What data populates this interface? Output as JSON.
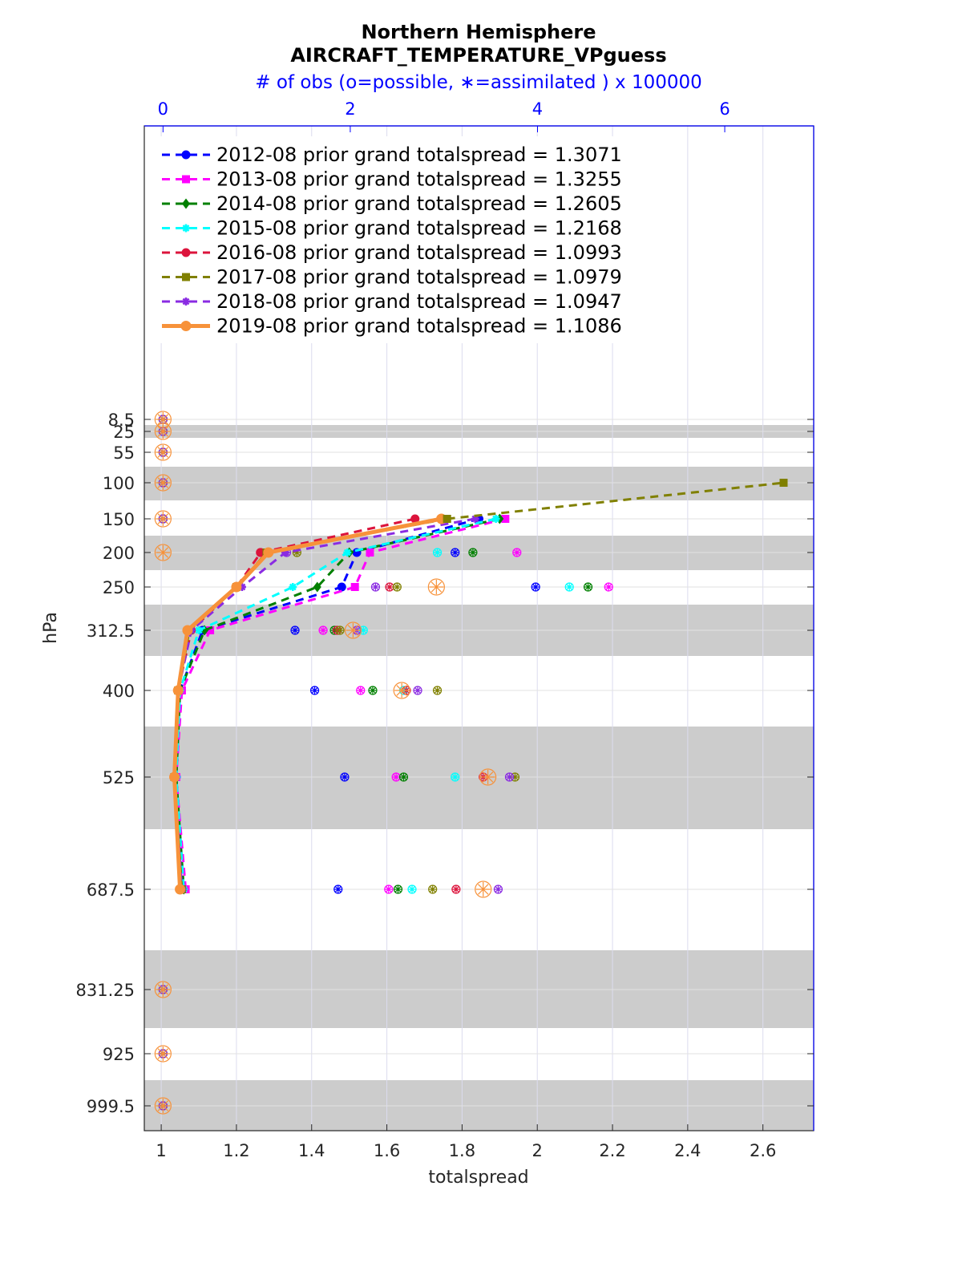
{
  "chart_data": {
    "type": "line",
    "title": "Northern Hemisphere",
    "subtitle": "AIRCRAFT_TEMPERATURE_VPguess",
    "top_axis_label": "# of obs (o=possible, ∗=assimilated ) x 100000",
    "xlabel": "totalspread",
    "ylabel": "hPa",
    "xlim": [
      0.955,
      2.735
    ],
    "x_ticks": [
      "1",
      "1.2",
      "1.4",
      "1.6",
      "1.8",
      "2",
      "2.2",
      "2.4",
      "2.6"
    ],
    "top_xlim": [
      -0.2,
      6.95
    ],
    "top_ticks": [
      "0",
      "2",
      "4",
      "6"
    ],
    "y_scale": "log",
    "y_reversed": true,
    "y_ticks": [
      "8.5",
      "25",
      "55",
      "100",
      "150",
      "200",
      "250",
      "312.5",
      "400",
      "525",
      "687.5",
      "831.25",
      "925",
      "999.5"
    ],
    "y_levels": [
      8.5,
      25,
      55,
      100,
      150,
      200,
      250,
      312.5,
      400,
      525,
      687.5,
      831.25,
      925,
      999.5
    ],
    "gray_bands_hpa": [
      [
        20,
        30
      ],
      [
        75,
        125
      ],
      [
        175,
        225
      ],
      [
        275,
        350
      ],
      [
        450,
        600
      ],
      [
        750,
        900
      ],
      [
        1000,
        1050
      ]
    ],
    "grid": true,
    "legend_placement": "top-left",
    "series": [
      {
        "name": "2012-08 prior grand totalspread = 1.3071",
        "color": "#0000ff",
        "marker": "circle",
        "dash": "10,7",
        "width": 3,
        "x": [
          1.845,
          1.52,
          1.48,
          1.11,
          1.05,
          1.04,
          1.055
        ],
        "y": [
          150,
          200,
          250,
          312.5,
          400,
          525,
          687.5
        ],
        "possible": [
          0,
          0,
          0,
          0,
          0,
          0,
          0,
          0,
          0,
          0,
          0,
          0,
          0,
          0
        ],
        "assimilated": [
          0,
          0,
          0,
          0,
          0,
          0,
          0,
          0,
          0,
          0,
          0,
          0,
          0,
          0
        ],
        "obs_pressure": [
          8.5,
          25,
          55,
          100,
          150,
          200,
          250,
          312.5,
          400,
          525,
          687.5,
          831.25,
          925,
          999.5
        ],
        "obs_possible": [
          0,
          0,
          0,
          0,
          0,
          3.12,
          3.98,
          1.41,
          1.62,
          1.94,
          1.87,
          0,
          0,
          0
        ]
      },
      {
        "name": "2013-08 prior grand totalspread = 1.3255",
        "color": "#ff00ff",
        "marker": "square",
        "dash": "10,7",
        "width": 3,
        "x": [
          1.915,
          1.555,
          1.515,
          1.13,
          1.055,
          1.04,
          1.065
        ],
        "y": [
          150,
          200,
          250,
          312.5,
          400,
          525,
          687.5
        ],
        "obs_pressure": [
          8.5,
          25,
          55,
          100,
          150,
          200,
          250,
          312.5,
          400,
          525,
          687.5,
          831.25,
          925,
          999.5
        ],
        "obs_possible": [
          0,
          0,
          0,
          0,
          0,
          3.78,
          4.76,
          1.71,
          2.11,
          2.49,
          2.41,
          0,
          0,
          0
        ]
      },
      {
        "name": "2014-08 prior grand totalspread = 1.2605",
        "color": "#008000",
        "marker": "diamond",
        "dash": "10,7",
        "width": 3,
        "x": [
          1.9,
          1.5,
          1.415,
          1.115,
          1.05,
          1.04,
          1.06
        ],
        "y": [
          150,
          200,
          250,
          312.5,
          400,
          525,
          687.5
        ],
        "obs_pressure": [
          8.5,
          25,
          55,
          100,
          150,
          200,
          250,
          312.5,
          400,
          525,
          687.5,
          831.25,
          925,
          999.5
        ],
        "obs_possible": [
          0,
          0,
          0,
          0,
          0,
          3.31,
          4.54,
          1.83,
          2.24,
          2.57,
          2.51,
          0,
          0,
          0
        ]
      },
      {
        "name": "2015-08 prior grand totalspread = 1.2168",
        "color": "#00ffff",
        "marker": "star",
        "dash": "10,7",
        "width": 3,
        "x": [
          1.89,
          1.495,
          1.35,
          1.1,
          1.05,
          1.04,
          1.06
        ],
        "y": [
          150,
          200,
          250,
          312.5,
          400,
          525,
          687.5
        ],
        "obs_pressure": [
          8.5,
          25,
          55,
          100,
          150,
          200,
          250,
          312.5,
          400,
          525,
          687.5,
          831.25,
          925,
          999.5
        ],
        "obs_possible": [
          0,
          0,
          0,
          0,
          0,
          2.93,
          4.34,
          2.14,
          2.57,
          3.12,
          2.66,
          0,
          0,
          0
        ]
      },
      {
        "name": "2016-08 prior grand totalspread = 1.0993",
        "color": "#dc143c",
        "marker": "hexagram",
        "dash": "10,7",
        "width": 3,
        "x": [
          1.675,
          1.265,
          1.2,
          1.08,
          1.045,
          1.035,
          1.055
        ],
        "y": [
          150,
          200,
          250,
          312.5,
          400,
          525,
          687.5
        ],
        "obs_pressure": [
          8.5,
          25,
          55,
          100,
          150,
          200,
          250,
          312.5,
          400,
          525,
          687.5,
          831.25,
          925,
          999.5
        ],
        "obs_possible": [
          0,
          0,
          0,
          0,
          0,
          1.04,
          2.42,
          1.86,
          2.6,
          3.42,
          3.13,
          0,
          0,
          0
        ]
      },
      {
        "name": "2017-08 prior grand totalspread = 1.0979",
        "color": "#808000",
        "marker": "square",
        "dash": "10,7",
        "width": 3,
        "x": [
          1.76,
          1.28,
          1.2,
          1.075,
          1.045,
          1.035,
          1.055
        ],
        "y": [
          150,
          200,
          250,
          312.5,
          400,
          525,
          687.5
        ],
        "obs_pressure": [
          8.5,
          25,
          55,
          100,
          150,
          200,
          250,
          312.5,
          400,
          525,
          687.5,
          831.25,
          925,
          999.5
        ],
        "obs_possible": [
          0,
          0,
          0,
          0,
          0,
          1.43,
          2.5,
          1.89,
          2.93,
          3.76,
          2.88,
          0,
          0,
          0
        ]
      },
      {
        "name": "2018-08 prior grand totalspread = 1.0947",
        "color": "#8a2be2",
        "marker": "asterisk",
        "dash": "10,7",
        "width": 3,
        "x": [
          1.835,
          1.33,
          1.215,
          1.08,
          1.045,
          1.035,
          1.055
        ],
        "y": [
          150,
          200,
          250,
          312.5,
          400,
          525,
          687.5
        ],
        "obs_pressure": [
          8.5,
          25,
          55,
          100,
          150,
          200,
          250,
          312.5,
          400,
          525,
          687.5,
          831.25,
          925,
          999.5
        ],
        "obs_possible": [
          0,
          0,
          0,
          0,
          0,
          1.32,
          2.27,
          2.07,
          2.72,
          3.7,
          3.58,
          0,
          0,
          0
        ]
      },
      {
        "name": "2019-08 prior grand totalspread = 1.1086",
        "color": "#f7923a",
        "marker": "circle",
        "dash": "",
        "width": 5,
        "x": [
          1.745,
          1.285,
          1.2,
          1.07,
          1.045,
          1.035,
          1.05
        ],
        "y": [
          150,
          200,
          250,
          312.5,
          400,
          525,
          687.5
        ],
        "obs_pressure": [
          8.5,
          25,
          55,
          100,
          150,
          200,
          250,
          312.5,
          400,
          525,
          687.5,
          831.25,
          925,
          999.5
        ],
        "obs_possible": [
          0,
          0,
          0,
          0,
          0,
          0,
          2.92,
          2.03,
          2.55,
          3.47,
          3.42,
          0,
          0,
          0
        ]
      },
      {
        "name": "",
        "color": "#808000",
        "marker": "square",
        "dash": "10,7",
        "width": 3,
        "extension": true,
        "x": [
          1.76,
          2.655
        ],
        "y": [
          150,
          100
        ]
      }
    ]
  }
}
